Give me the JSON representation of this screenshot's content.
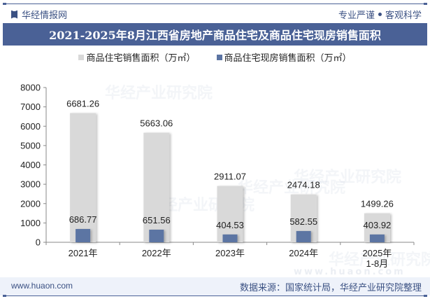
{
  "header": {
    "brand": "华经情报网",
    "slogan_left": "专业严谨",
    "slogan_right": "客观科学",
    "title": "2021-2025年8月江西省房地产商品住宅及商品住宅现房销售面积"
  },
  "footer": {
    "url": "www.huaon.com",
    "source": "数据来源：国家统计局，华经产业研究院整理"
  },
  "watermark": {
    "text": "华经产业研究院",
    "url": "www.huaon.com"
  },
  "colors": {
    "series1": "#d9d9d9",
    "series2": "#5b74a3",
    "title_bg": "#4a6196",
    "brand": "#3b5183"
  },
  "chart_data": {
    "type": "bar",
    "title": "2021-2025年8月江西省房地产商品住宅及商品住宅现房销售面积",
    "categories": [
      "2021年",
      "2022年",
      "2023年",
      "2024年",
      "2025年\n1-8月"
    ],
    "category_labels": [
      [
        "2021年"
      ],
      [
        "2022年"
      ],
      [
        "2023年"
      ],
      [
        "2024年"
      ],
      [
        "2025年",
        "1-8月"
      ]
    ],
    "series": [
      {
        "name": "商品住宅销售面积（万㎡）",
        "values": [
          6681.26,
          5663.06,
          2911.07,
          2474.18,
          1499.26
        ],
        "labels": [
          "6681.26",
          "5663.06",
          "2911.07",
          "2474.18",
          "1499.26"
        ]
      },
      {
        "name": "商品住宅现房销售面积（万㎡）",
        "values": [
          686.77,
          651.56,
          404.53,
          582.55,
          403.92
        ],
        "labels": [
          "686.77",
          "651.56",
          "404.53",
          "582.55",
          "403.92"
        ]
      }
    ],
    "xlabel": "",
    "ylabel": "",
    "ylim": [
      0,
      8000
    ],
    "yticks": [
      0,
      1000,
      2000,
      3000,
      4000,
      5000,
      6000,
      7000,
      8000
    ],
    "grid": false,
    "legend_position": "top"
  }
}
